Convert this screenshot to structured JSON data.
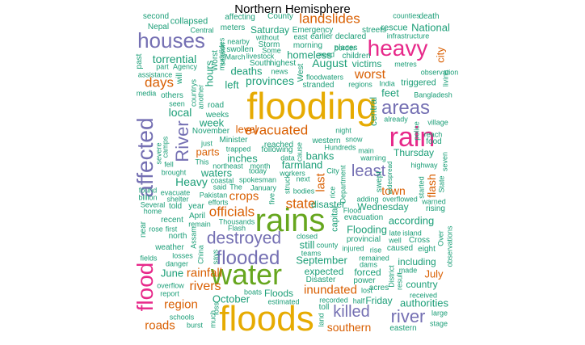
{
  "title": "Northern Hemisphere",
  "colors": {
    "green": "#1b9e77",
    "orange": "#d95f02",
    "purple": "#7570b3",
    "magenta": "#e7298a",
    "lime": "#66a61e",
    "gold": "#e6ab02"
  },
  "words": [
    {
      "text": "flooding",
      "c": "gold"
    },
    {
      "text": "floods",
      "c": "gold"
    },
    {
      "text": "rains",
      "c": "lime"
    },
    {
      "text": "water",
      "c": "lime"
    },
    {
      "text": "rain",
      "c": "magenta"
    },
    {
      "text": "heavy",
      "c": "magenta"
    },
    {
      "text": "flood",
      "c": "magenta"
    },
    {
      "text": "houses",
      "c": "purple"
    },
    {
      "text": "areas",
      "c": "purple"
    },
    {
      "text": "affected",
      "c": "purple"
    },
    {
      "text": "destroyed",
      "c": "purple"
    },
    {
      "text": "flooded",
      "c": "purple"
    },
    {
      "text": "River",
      "c": "purple"
    },
    {
      "text": "least",
      "c": "purple"
    },
    {
      "text": "river",
      "c": "purple"
    },
    {
      "text": "killed",
      "c": "purple"
    },
    {
      "text": "landslides",
      "c": "orange"
    },
    {
      "text": "days",
      "c": "orange"
    },
    {
      "text": "worst",
      "c": "orange"
    },
    {
      "text": "evacuated",
      "c": "orange"
    },
    {
      "text": "state",
      "c": "orange"
    },
    {
      "text": "officials",
      "c": "orange"
    },
    {
      "text": "crops",
      "c": "orange"
    },
    {
      "text": "rainfall",
      "c": "orange"
    },
    {
      "text": "rivers",
      "c": "orange"
    },
    {
      "text": "region",
      "c": "orange"
    },
    {
      "text": "roads",
      "c": "orange"
    },
    {
      "text": "inundated",
      "c": "orange"
    },
    {
      "text": "southern",
      "c": "orange"
    },
    {
      "text": "July",
      "c": "orange"
    },
    {
      "text": "city",
      "c": "orange"
    },
    {
      "text": "last",
      "c": "orange"
    },
    {
      "text": "flash",
      "c": "orange"
    },
    {
      "text": "level",
      "c": "orange"
    },
    {
      "text": "parts",
      "c": "orange"
    },
    {
      "text": "town",
      "c": "orange"
    },
    {
      "text": "torrential",
      "c": "green"
    },
    {
      "text": "August",
      "c": "green"
    },
    {
      "text": "victims",
      "c": "green"
    },
    {
      "text": "homeless",
      "c": "green"
    },
    {
      "text": "deaths",
      "c": "green"
    },
    {
      "text": "provinces",
      "c": "green"
    },
    {
      "text": "hours",
      "c": "green"
    },
    {
      "text": "left",
      "c": "green"
    },
    {
      "text": "local",
      "c": "green"
    },
    {
      "text": "feet",
      "c": "green"
    },
    {
      "text": "central",
      "c": "green"
    },
    {
      "text": "week",
      "c": "green"
    },
    {
      "text": "inches",
      "c": "green"
    },
    {
      "text": "waters",
      "c": "green"
    },
    {
      "text": "farmland",
      "c": "green"
    },
    {
      "text": "banks",
      "c": "green"
    },
    {
      "text": "Heavy",
      "c": "green"
    },
    {
      "text": "Thursday",
      "c": "green"
    },
    {
      "text": "Wednesday",
      "c": "green"
    },
    {
      "text": "disaster",
      "c": "green"
    },
    {
      "text": "according",
      "c": "green"
    },
    {
      "text": "Flooding",
      "c": "green"
    },
    {
      "text": "still",
      "c": "green"
    },
    {
      "text": "September",
      "c": "green"
    },
    {
      "text": "including",
      "c": "green"
    },
    {
      "text": "expected",
      "c": "green"
    },
    {
      "text": "forced",
      "c": "green"
    },
    {
      "text": "country",
      "c": "green"
    },
    {
      "text": "authorities",
      "c": "green"
    },
    {
      "text": "June",
      "c": "green"
    },
    {
      "text": "October",
      "c": "green"
    },
    {
      "text": "Floods",
      "c": "green"
    },
    {
      "text": "Friday",
      "c": "green"
    },
    {
      "text": "rescue",
      "c": "green"
    },
    {
      "text": "National",
      "c": "green"
    },
    {
      "text": "Saturday",
      "c": "green"
    },
    {
      "text": "County",
      "c": "green"
    },
    {
      "text": "Nepal",
      "c": "green"
    },
    {
      "text": "collapsed",
      "c": "green"
    },
    {
      "text": "second",
      "c": "green"
    },
    {
      "text": "affecting",
      "c": "green"
    },
    {
      "text": "meters",
      "c": "green"
    },
    {
      "text": "Central",
      "c": "green"
    },
    {
      "text": "Emergency",
      "c": "green"
    },
    {
      "text": "streets",
      "c": "green"
    },
    {
      "text": "counties",
      "c": "green"
    },
    {
      "text": "death",
      "c": "green"
    },
    {
      "text": "infrastructure",
      "c": "green"
    },
    {
      "text": "places",
      "c": "green"
    },
    {
      "text": "children",
      "c": "green"
    },
    {
      "text": "border",
      "c": "green"
    },
    {
      "text": "morning",
      "c": "green"
    },
    {
      "text": "east",
      "c": "green"
    },
    {
      "text": "earlier",
      "c": "green"
    },
    {
      "text": "declared",
      "c": "green"
    },
    {
      "text": "without",
      "c": "green"
    },
    {
      "text": "Storm",
      "c": "green"
    },
    {
      "text": "nearby",
      "c": "green"
    },
    {
      "text": "swollen",
      "c": "green"
    },
    {
      "text": "Some",
      "c": "green"
    },
    {
      "text": "need",
      "c": "green"
    },
    {
      "text": "March",
      "c": "green"
    },
    {
      "text": "livestock",
      "c": "green"
    },
    {
      "text": "highest",
      "c": "green"
    },
    {
      "text": "South",
      "c": "green"
    },
    {
      "text": "news",
      "c": "green"
    },
    {
      "text": "West",
      "c": "green"
    },
    {
      "text": "stranded",
      "c": "green"
    },
    {
      "text": "regions",
      "c": "green"
    },
    {
      "text": "India",
      "c": "green"
    },
    {
      "text": "triggered",
      "c": "green"
    },
    {
      "text": "metres",
      "c": "green"
    },
    {
      "text": "observation",
      "c": "green"
    },
    {
      "text": "living",
      "c": "green"
    },
    {
      "text": "Bangladesh",
      "c": "green"
    },
    {
      "text": "floodwaters",
      "c": "green"
    },
    {
      "text": "past",
      "c": "green"
    },
    {
      "text": "part",
      "c": "green"
    },
    {
      "text": "Agency",
      "c": "green"
    },
    {
      "text": "assistance",
      "c": "green"
    },
    {
      "text": "will",
      "c": "green"
    },
    {
      "text": "media",
      "c": "green"
    },
    {
      "text": "others",
      "c": "green"
    },
    {
      "text": "seen",
      "c": "green"
    },
    {
      "text": "countrys",
      "c": "green"
    },
    {
      "text": "another",
      "c": "green"
    },
    {
      "text": "Worst",
      "c": "green"
    },
    {
      "text": "season",
      "c": "green"
    },
    {
      "text": "mudslides",
      "c": "green"
    },
    {
      "text": "road",
      "c": "green"
    },
    {
      "text": "weeks",
      "c": "green"
    },
    {
      "text": "November",
      "c": "green"
    },
    {
      "text": "just",
      "c": "green"
    },
    {
      "text": "Minister",
      "c": "green"
    },
    {
      "text": "trapped",
      "c": "green"
    },
    {
      "text": "reached",
      "c": "green"
    },
    {
      "text": "following",
      "c": "green"
    },
    {
      "text": "cause",
      "c": "green"
    },
    {
      "text": "western",
      "c": "green"
    },
    {
      "text": "Hundreds",
      "c": "green"
    },
    {
      "text": "snow",
      "c": "green"
    },
    {
      "text": "night",
      "c": "green"
    },
    {
      "text": "main",
      "c": "green"
    },
    {
      "text": "warning",
      "c": "green"
    },
    {
      "text": "already",
      "c": "green"
    },
    {
      "text": "village",
      "c": "green"
    },
    {
      "text": "police",
      "c": "green"
    },
    {
      "text": "reach",
      "c": "green"
    },
    {
      "text": "food",
      "c": "green"
    },
    {
      "text": "highway",
      "c": "green"
    },
    {
      "text": "seven",
      "c": "green"
    },
    {
      "text": "camps",
      "c": "green"
    },
    {
      "text": "severe",
      "c": "green"
    },
    {
      "text": "fell",
      "c": "green"
    },
    {
      "text": "brought",
      "c": "green"
    },
    {
      "text": "This",
      "c": "green"
    },
    {
      "text": "northeast",
      "c": "green"
    },
    {
      "text": "month",
      "c": "green"
    },
    {
      "text": "today",
      "c": "green"
    },
    {
      "text": "workers",
      "c": "green"
    },
    {
      "text": "data",
      "c": "green"
    },
    {
      "text": "City",
      "c": "green"
    },
    {
      "text": "coastal",
      "c": "green"
    },
    {
      "text": "spokesman",
      "c": "green"
    },
    {
      "text": "said",
      "c": "green"
    },
    {
      "text": "The",
      "c": "green"
    },
    {
      "text": "January",
      "c": "green"
    },
    {
      "text": "struck",
      "c": "green"
    },
    {
      "text": "bodies",
      "c": "green"
    },
    {
      "text": "five",
      "c": "green"
    },
    {
      "text": "next",
      "c": "green"
    },
    {
      "text": "Department",
      "c": "green"
    },
    {
      "text": "widespread",
      "c": "green"
    },
    {
      "text": "swept",
      "c": "green"
    },
    {
      "text": "adding",
      "c": "green"
    },
    {
      "text": "overflowed",
      "c": "green"
    },
    {
      "text": "started",
      "c": "green"
    },
    {
      "text": "warned",
      "c": "green"
    },
    {
      "text": "State",
      "c": "green"
    },
    {
      "text": "rising",
      "c": "green"
    },
    {
      "text": "found",
      "c": "green"
    },
    {
      "text": "billion",
      "c": "green"
    },
    {
      "text": "Several",
      "c": "green"
    },
    {
      "text": "evacuate",
      "c": "green"
    },
    {
      "text": "shelter",
      "c": "green"
    },
    {
      "text": "home",
      "c": "green"
    },
    {
      "text": "told",
      "c": "green"
    },
    {
      "text": "year",
      "c": "green"
    },
    {
      "text": "Pakistan",
      "c": "green"
    },
    {
      "text": "efforts",
      "c": "green"
    },
    {
      "text": "rice",
      "c": "green"
    },
    {
      "text": "capital",
      "c": "green"
    },
    {
      "text": "Flood",
      "c": "green"
    },
    {
      "text": "evacuation",
      "c": "green"
    },
    {
      "text": "recent",
      "c": "green"
    },
    {
      "text": "April",
      "c": "green"
    },
    {
      "text": "remain",
      "c": "green"
    },
    {
      "text": "Thousands",
      "c": "green"
    },
    {
      "text": "Flash",
      "c": "green"
    },
    {
      "text": "near",
      "c": "green"
    },
    {
      "text": "rose",
      "c": "green"
    },
    {
      "text": "first",
      "c": "green"
    },
    {
      "text": "north",
      "c": "green"
    },
    {
      "text": "Assam",
      "c": "green"
    },
    {
      "text": "closed",
      "c": "green"
    },
    {
      "text": "county",
      "c": "green"
    },
    {
      "text": "provincial",
      "c": "green"
    },
    {
      "text": "late",
      "c": "green"
    },
    {
      "text": "island",
      "c": "green"
    },
    {
      "text": "well",
      "c": "green"
    },
    {
      "text": "Cross",
      "c": "green"
    },
    {
      "text": "Over",
      "c": "green"
    },
    {
      "text": "weather",
      "c": "green"
    },
    {
      "text": "losses",
      "c": "green"
    },
    {
      "text": "teams",
      "c": "green"
    },
    {
      "text": "injured",
      "c": "green"
    },
    {
      "text": "caused",
      "c": "green"
    },
    {
      "text": "rise",
      "c": "green"
    },
    {
      "text": "eight",
      "c": "green"
    },
    {
      "text": "observations",
      "c": "green"
    },
    {
      "text": "fields",
      "c": "green"
    },
    {
      "text": "China",
      "c": "green"
    },
    {
      "text": "says",
      "c": "green"
    },
    {
      "text": "danger",
      "c": "green"
    },
    {
      "text": "remained",
      "c": "green"
    },
    {
      "text": "dams",
      "c": "green"
    },
    {
      "text": "made",
      "c": "green"
    },
    {
      "text": "overflow",
      "c": "green"
    },
    {
      "text": "Disaster",
      "c": "green"
    },
    {
      "text": "power",
      "c": "green"
    },
    {
      "text": "District",
      "c": "green"
    },
    {
      "text": "report",
      "c": "green"
    },
    {
      "text": "acres",
      "c": "green"
    },
    {
      "text": "result",
      "c": "green"
    },
    {
      "text": "received",
      "c": "green"
    },
    {
      "text": "schools",
      "c": "green"
    },
    {
      "text": "loss",
      "c": "green"
    },
    {
      "text": "boats",
      "c": "green"
    },
    {
      "text": "estimated",
      "c": "green"
    },
    {
      "text": "recorded",
      "c": "green"
    },
    {
      "text": "half",
      "c": "green"
    },
    {
      "text": "lost",
      "c": "green"
    },
    {
      "text": "burst",
      "c": "green"
    },
    {
      "text": "much",
      "c": "green"
    },
    {
      "text": "land",
      "c": "green"
    },
    {
      "text": "toll",
      "c": "green"
    },
    {
      "text": "large",
      "c": "green"
    },
    {
      "text": "stage",
      "c": "green"
    },
    {
      "text": "eastern",
      "c": "green"
    }
  ]
}
